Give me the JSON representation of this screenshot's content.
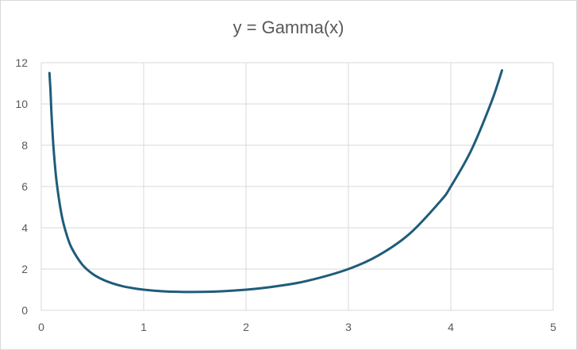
{
  "chart_data": {
    "type": "scatter",
    "title": "y = Gamma(x)",
    "xlabel": "",
    "ylabel": "",
    "xlim": [
      0,
      5
    ],
    "ylim": [
      0,
      12
    ],
    "x_ticks": [
      0,
      1,
      2,
      3,
      4,
      5
    ],
    "y_ticks": [
      0,
      2,
      4,
      6,
      8,
      10,
      12
    ],
    "grid": true,
    "legend": "none",
    "line_color": "#1f5c7a",
    "series": [
      {
        "x": [
          0.08,
          0.09,
          0.1,
          0.12,
          0.15,
          0.2,
          0.25,
          0.3,
          0.4,
          0.5,
          0.6,
          0.7,
          0.8,
          0.9,
          1.0,
          1.2,
          1.4616,
          1.7,
          2.0,
          2.3,
          2.6,
          3.0,
          3.3,
          3.6,
          3.9,
          4.0,
          4.2,
          4.4,
          4.5
        ],
        "y": [
          11.5,
          10.64,
          9.51,
          7.85,
          6.22,
          4.59,
          3.63,
          2.99,
          2.22,
          1.77,
          1.49,
          1.3,
          1.16,
          1.07,
          1.0,
          0.92,
          0.89,
          0.91,
          1.0,
          1.17,
          1.43,
          2.0,
          2.68,
          3.72,
          5.3,
          6.0,
          7.76,
          10.14,
          11.63
        ]
      }
    ]
  }
}
